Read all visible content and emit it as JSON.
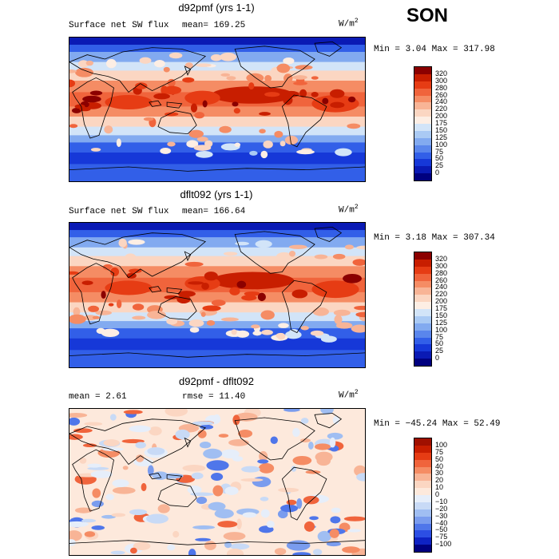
{
  "season": "SON",
  "panels": [
    {
      "title": "d92pmf (yrs 1-1)",
      "field_label": "Surface net SW flux",
      "stat_label": "mean= 169.25",
      "units_base": "W/m",
      "units_exp": "2",
      "minmax": "Min =    3.04 Max = 317.98"
    },
    {
      "title": "dflt092 (yrs 1-1)",
      "field_label": "Surface net SW flux",
      "stat_label": "mean= 166.64",
      "units_base": "W/m",
      "units_exp": "2",
      "minmax": "Min =    3.18 Max = 307.34"
    },
    {
      "title": "d92pmf - dflt092",
      "field_label": "mean =    2.61",
      "stat_label": "rmse =   11.40",
      "units_base": "W/m",
      "units_exp": "2",
      "minmax": "Min = −45.24 Max =  52.49"
    }
  ],
  "chart_data": [
    {
      "type": "heatmap",
      "title": "d92pmf (yrs 1-1)",
      "subtitle": "Surface net SW flux",
      "mean": 169.25,
      "min": 3.04,
      "max": 317.98,
      "units": "W/m2",
      "colorbar_levels": [
        "320",
        "300",
        "280",
        "260",
        "240",
        "220",
        "200",
        "175",
        "150",
        "125",
        "100",
        "75",
        "50",
        "25",
        "0"
      ],
      "colorbar_colors": [
        "#8b0000",
        "#c81e00",
        "#e63c14",
        "#f0643c",
        "#f58c64",
        "#f8b496",
        "#fbd6c2",
        "#fdeee4",
        "#d2e4f8",
        "#aacaf4",
        "#82aaf0",
        "#5a86ec",
        "#325fe8",
        "#1638d8",
        "#0a1ab4",
        "#00007f"
      ]
    },
    {
      "type": "heatmap",
      "title": "dflt092 (yrs 1-1)",
      "subtitle": "Surface net SW flux",
      "mean": 166.64,
      "min": 3.18,
      "max": 307.34,
      "units": "W/m2",
      "colorbar_levels": [
        "320",
        "300",
        "280",
        "260",
        "240",
        "220",
        "200",
        "175",
        "150",
        "125",
        "100",
        "75",
        "50",
        "25",
        "0"
      ],
      "colorbar_colors": [
        "#8b0000",
        "#c81e00",
        "#e63c14",
        "#f0643c",
        "#f58c64",
        "#f8b496",
        "#fbd6c2",
        "#fdeee4",
        "#d2e4f8",
        "#aacaf4",
        "#82aaf0",
        "#5a86ec",
        "#325fe8",
        "#1638d8",
        "#0a1ab4",
        "#00007f"
      ]
    },
    {
      "type": "heatmap",
      "title": "d92pmf - dflt092",
      "mean": 2.61,
      "rmse": 11.4,
      "min": -45.24,
      "max": 52.49,
      "units": "W/m2",
      "colorbar_levels": [
        "100",
        "75",
        "50",
        "40",
        "30",
        "20",
        "10",
        "0",
        "−10",
        "−20",
        "−30",
        "−40",
        "−50",
        "−75",
        "−100"
      ],
      "colorbar_colors": [
        "#a01000",
        "#c81e00",
        "#e63c14",
        "#f0643c",
        "#f58c64",
        "#f8b496",
        "#fbd6c2",
        "#fde9dc",
        "#e6eefa",
        "#c8daf6",
        "#a0bef2",
        "#7a9cee",
        "#4f76ea",
        "#2c4ee4",
        "#0e22c4",
        "#000080"
      ]
    }
  ]
}
